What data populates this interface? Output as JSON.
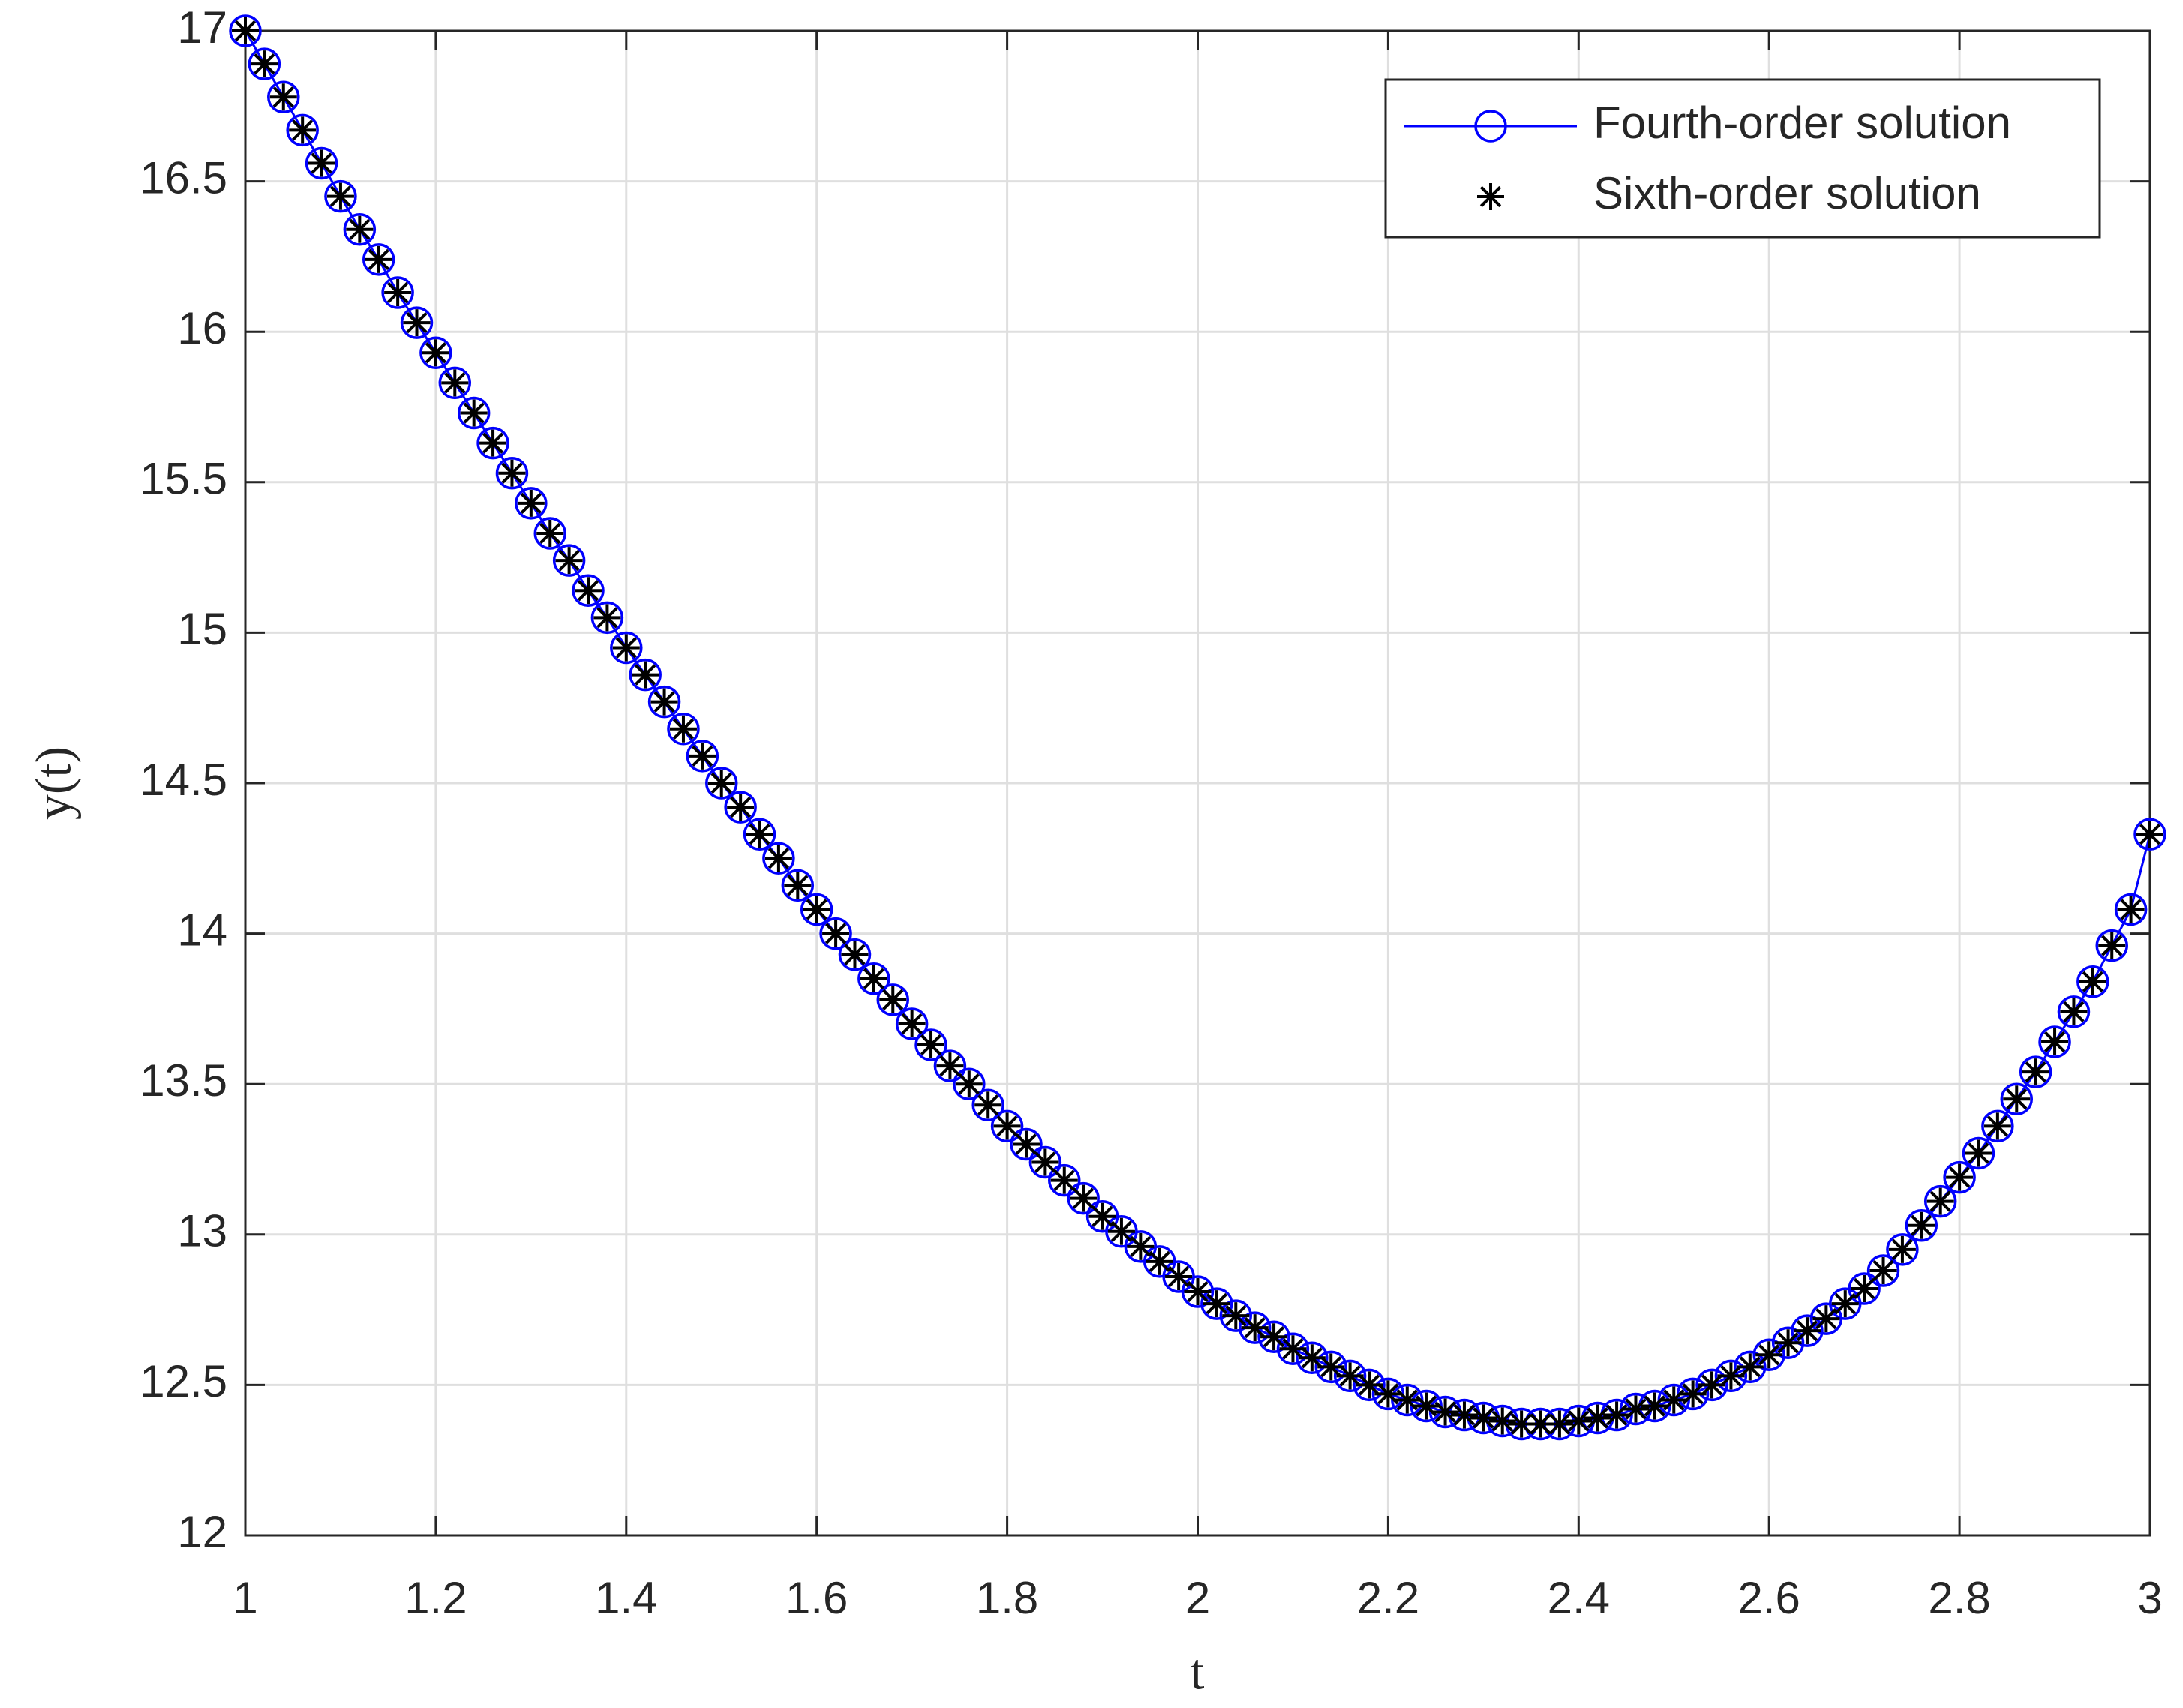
{
  "chart_data": {
    "type": "line",
    "xlabel": "t",
    "ylabel": "y(t)",
    "x": [
      1,
      1.02,
      1.04,
      1.06,
      1.08,
      1.1,
      1.12,
      1.14,
      1.16,
      1.18,
      1.2,
      1.22,
      1.24,
      1.26,
      1.28,
      1.3,
      1.32,
      1.34,
      1.36,
      1.38,
      1.4,
      1.42,
      1.44,
      1.46,
      1.48,
      1.5,
      1.52,
      1.54,
      1.56,
      1.58,
      1.6,
      1.62,
      1.64,
      1.66,
      1.68,
      1.7,
      1.72,
      1.74,
      1.76,
      1.78,
      1.8,
      1.82,
      1.84,
      1.86,
      1.88,
      1.9,
      1.92,
      1.94,
      1.96,
      1.98,
      2,
      2.02,
      2.04,
      2.06,
      2.08,
      2.1,
      2.12,
      2.14,
      2.16,
      2.18,
      2.2,
      2.22,
      2.24,
      2.26,
      2.28,
      2.3,
      2.32,
      2.34,
      2.36,
      2.38,
      2.4,
      2.42,
      2.44,
      2.46,
      2.48,
      2.5,
      2.52,
      2.54,
      2.56,
      2.58,
      2.6,
      2.62,
      2.64,
      2.66,
      2.68,
      2.7,
      2.72,
      2.74,
      2.76,
      2.78,
      2.8,
      2.82,
      2.84,
      2.86,
      2.88,
      2.9,
      2.92,
      2.94,
      2.96,
      2.98,
      3
    ],
    "series": [
      {
        "name": "Fourth-order solution",
        "color": "#0000ff",
        "marker": "circle",
        "line": true,
        "values": [
          17,
          16.89,
          16.78,
          16.67,
          16.56,
          16.45,
          16.34,
          16.24,
          16.13,
          16.03,
          15.93,
          15.83,
          15.73,
          15.63,
          15.53,
          15.43,
          15.33,
          15.24,
          15.14,
          15.05,
          14.95,
          14.86,
          14.77,
          14.68,
          14.59,
          14.5,
          14.42,
          14.33,
          14.25,
          14.16,
          14.08,
          14,
          13.93,
          13.85,
          13.78,
          13.7,
          13.63,
          13.56,
          13.5,
          13.43,
          13.36,
          13.3,
          13.24,
          13.18,
          13.12,
          13.06,
          13.01,
          12.96,
          12.91,
          12.86,
          12.81,
          12.77,
          12.73,
          12.69,
          12.66,
          12.62,
          12.59,
          12.56,
          12.53,
          12.5,
          12.47,
          12.45,
          12.43,
          12.41,
          12.4,
          12.39,
          12.38,
          12.37,
          12.37,
          12.37,
          12.38,
          12.39,
          12.4,
          12.42,
          12.43,
          12.45,
          12.47,
          12.5,
          12.53,
          12.56,
          12.6,
          12.64,
          12.68,
          12.72,
          12.77,
          12.82,
          12.88,
          12.95,
          13.03,
          13.11,
          13.19,
          13.27,
          13.36,
          13.45,
          13.54,
          13.64,
          13.74,
          13.84,
          13.96,
          14.08,
          14.33
        ]
      },
      {
        "name": "Sixth-order solution",
        "color": "#000000",
        "marker": "asterisk",
        "line": false,
        "values": [
          17,
          16.89,
          16.78,
          16.67,
          16.56,
          16.45,
          16.34,
          16.24,
          16.13,
          16.03,
          15.93,
          15.83,
          15.73,
          15.63,
          15.53,
          15.43,
          15.33,
          15.24,
          15.14,
          15.05,
          14.95,
          14.86,
          14.77,
          14.68,
          14.59,
          14.5,
          14.42,
          14.33,
          14.25,
          14.16,
          14.08,
          14,
          13.93,
          13.85,
          13.78,
          13.7,
          13.63,
          13.56,
          13.5,
          13.43,
          13.36,
          13.3,
          13.24,
          13.18,
          13.12,
          13.06,
          13.01,
          12.96,
          12.91,
          12.86,
          12.81,
          12.77,
          12.73,
          12.69,
          12.66,
          12.62,
          12.59,
          12.56,
          12.53,
          12.5,
          12.47,
          12.45,
          12.43,
          12.41,
          12.4,
          12.39,
          12.38,
          12.37,
          12.37,
          12.37,
          12.38,
          12.39,
          12.4,
          12.42,
          12.43,
          12.45,
          12.47,
          12.5,
          12.53,
          12.56,
          12.6,
          12.64,
          12.68,
          12.72,
          12.77,
          12.82,
          12.88,
          12.95,
          13.03,
          13.11,
          13.19,
          13.27,
          13.36,
          13.45,
          13.54,
          13.64,
          13.74,
          13.84,
          13.96,
          14.08,
          14.33
        ]
      }
    ],
    "xlim": [
      1,
      3
    ],
    "xticks": [
      1,
      1.2,
      1.4,
      1.6,
      1.8,
      2,
      2.2,
      2.4,
      2.6,
      2.8,
      3
    ],
    "ylim": [
      12,
      17
    ],
    "yticks": [
      12,
      12.5,
      13,
      13.5,
      14,
      14.5,
      15,
      15.5,
      16,
      16.5,
      17
    ],
    "grid": true,
    "legend": "northeast"
  }
}
